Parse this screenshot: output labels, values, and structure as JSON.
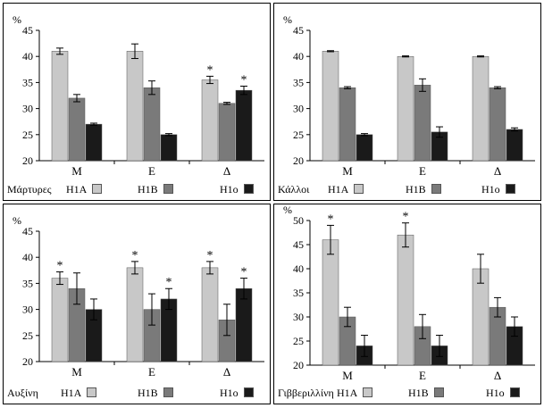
{
  "colors": {
    "H1A": "#c8c8c8",
    "H1B": "#7a7a7a",
    "H1o": "#1a1a1a"
  },
  "chart_data": [
    {
      "type": "bar",
      "title": "",
      "legend_prefix": "Μάρτυρες",
      "y_unit": "%",
      "ylim": [
        20,
        45
      ],
      "yticks": [
        20,
        25,
        30,
        35,
        40,
        45
      ],
      "categories": [
        "Μ",
        "Ε",
        "Δ"
      ],
      "series": [
        {
          "name": "H1A",
          "values": [
            41,
            41,
            35.5
          ],
          "errors": [
            0.6,
            1.4,
            0.7
          ]
        },
        {
          "name": "H1B",
          "values": [
            32,
            34,
            31
          ],
          "errors": [
            0.7,
            1.3,
            0.2
          ]
        },
        {
          "name": "H1o",
          "values": [
            27,
            25,
            33.5
          ],
          "errors": [
            0.2,
            0.2,
            0.8
          ]
        }
      ],
      "significance": [
        [
          false,
          false,
          true
        ],
        [
          false,
          false,
          false
        ],
        [
          false,
          false,
          true
        ]
      ]
    },
    {
      "type": "bar",
      "title": "",
      "legend_prefix": "Κάλλοι",
      "y_unit": "%",
      "ylim": [
        20,
        45
      ],
      "yticks": [
        20,
        25,
        30,
        35,
        40,
        45
      ],
      "categories": [
        "Μ",
        "Ε",
        "Δ"
      ],
      "series": [
        {
          "name": "H1A",
          "values": [
            41,
            40,
            40
          ],
          "errors": [
            0.1,
            0.1,
            0.1
          ]
        },
        {
          "name": "H1B",
          "values": [
            34,
            34.5,
            34
          ],
          "errors": [
            0.2,
            1.2,
            0.2
          ]
        },
        {
          "name": "H1o",
          "values": [
            25,
            25.5,
            26
          ],
          "errors": [
            0.2,
            1,
            0.3
          ]
        }
      ],
      "significance": [
        [
          false,
          false,
          false
        ],
        [
          false,
          false,
          false
        ],
        [
          false,
          false,
          false
        ]
      ]
    },
    {
      "type": "bar",
      "title": "",
      "legend_prefix": "Αυξίνη",
      "y_unit": "%",
      "ylim": [
        20,
        45
      ],
      "yticks": [
        20,
        25,
        30,
        35,
        40,
        45
      ],
      "categories": [
        "Μ",
        "Ε",
        "Δ"
      ],
      "series": [
        {
          "name": "H1A",
          "values": [
            36,
            38,
            38
          ],
          "errors": [
            1.2,
            1.2,
            1.2
          ]
        },
        {
          "name": "H1B",
          "values": [
            34,
            30,
            28
          ],
          "errors": [
            3,
            3,
            3
          ]
        },
        {
          "name": "H1o",
          "values": [
            30,
            32,
            34
          ],
          "errors": [
            2,
            2,
            2
          ]
        }
      ],
      "significance": [
        [
          true,
          true,
          true
        ],
        [
          false,
          false,
          false
        ],
        [
          false,
          true,
          true
        ]
      ]
    },
    {
      "type": "bar",
      "title": "",
      "legend_prefix": "Γιββεριλλίνη",
      "y_unit": "%",
      "ylim": [
        20,
        50
      ],
      "yticks": [
        20,
        25,
        30,
        35,
        40,
        45,
        50
      ],
      "categories": [
        "Μ",
        "Ε",
        "Δ"
      ],
      "series": [
        {
          "name": "H1A",
          "values": [
            46,
            47,
            40
          ],
          "errors": [
            3,
            2.5,
            3
          ]
        },
        {
          "name": "H1B",
          "values": [
            30,
            28,
            32
          ],
          "errors": [
            2,
            2.5,
            2
          ]
        },
        {
          "name": "H1o",
          "values": [
            24,
            24,
            28
          ],
          "errors": [
            2.2,
            2.2,
            2
          ]
        }
      ],
      "significance": [
        [
          true,
          true,
          false
        ],
        [
          false,
          false,
          false
        ],
        [
          false,
          false,
          false
        ]
      ]
    }
  ]
}
